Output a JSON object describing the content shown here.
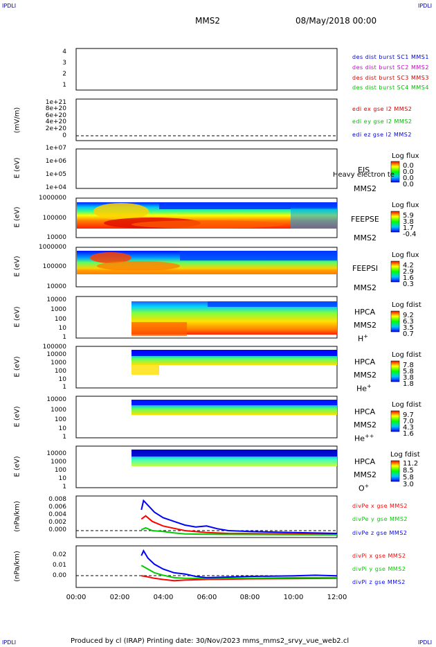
{
  "corners": {
    "top_left": "IPDLI",
    "top_right": "IPDLI",
    "bottom_left": "IPDLI",
    "bottom_right": "IPDLI"
  },
  "header": {
    "mission": "MMS2",
    "date": "08/May/2018 00:00"
  },
  "footer": "Produced by cl (IRAP)   Printing date: 30/Nov/2023   mms_mms2_srvy_vue_web2.cl",
  "colors": {
    "sc1": "#0000cc",
    "sc2": "#cc00cc",
    "sc3": "#cc0000",
    "sc4": "#00bb00",
    "x": "#ff0000",
    "y": "#00cc00",
    "z": "#0000ff"
  },
  "chart_data": [
    {
      "type": "line",
      "title": "Burst flags",
      "yticks": [
        "4",
        "3",
        "2",
        "1"
      ],
      "legend": [
        "des dist burst SC1 MMS1",
        "des dist burst SC2 MMS2",
        "des dist burst SC3 MMS3",
        "des dist burst SC4 MMS4"
      ],
      "xlim": [
        "00:00",
        "12:00"
      ]
    },
    {
      "type": "line",
      "ylabel": "(mV/m)",
      "yticks": [
        "1e+21",
        "8e+20",
        "6e+20",
        "4e+20",
        "2e+20",
        "0"
      ],
      "legend": [
        "edi ex gse l2 MMS2",
        "edi ey gse l2 MMS2",
        "edi ez gse l2 MMS2"
      ]
    },
    {
      "type": "heatmap",
      "instrument": "EIS",
      "ylabel": "E (eV)",
      "yticks": [
        "1e+07",
        "1e+06",
        "1e+05",
        "1e+04"
      ],
      "label": "EIS",
      "sublabel": "MMS2",
      "overlay": "Heavy electron te",
      "cbar_title": "Log flux",
      "cbar_ticks": [
        "0.0",
        "0.0",
        "0.0",
        "0.0"
      ]
    },
    {
      "type": "heatmap",
      "instrument": "FEEPSE",
      "ylabel": "E (eV)",
      "yticks": [
        "1000000",
        "100000",
        "10000"
      ],
      "label": "FEEPSE",
      "sublabel": "MMS2",
      "cbar_title": "Log flux",
      "cbar_ticks": [
        "5.9",
        "3.8",
        "1.7",
        "-0.4"
      ]
    },
    {
      "type": "heatmap",
      "instrument": "FEEPSI",
      "ylabel": "E (eV)",
      "yticks": [
        "1000000",
        "100000",
        "10000"
      ],
      "label": "FEEPSI",
      "sublabel": "MMS2",
      "cbar_title": "Log flux",
      "cbar_ticks": [
        "4.2",
        "2.9",
        "1.6",
        "0.3"
      ]
    },
    {
      "type": "heatmap",
      "instrument": "HPCA",
      "ylabel": "E (eV)",
      "yticks": [
        "10000",
        "1000",
        "100",
        "10",
        "1"
      ],
      "label": "HPCA",
      "sublabel": "MMS2",
      "species": "H",
      "charge": "+",
      "cbar_title": "Log fdist",
      "cbar_ticks": [
        "9.2",
        "6.3",
        "3.5",
        "0.7"
      ]
    },
    {
      "type": "heatmap",
      "instrument": "HPCA",
      "ylabel": "E (eV)",
      "yticks": [
        "100000",
        "10000",
        "1000",
        "100",
        "10",
        "1"
      ],
      "label": "HPCA",
      "sublabel": "MMS2",
      "species": "He",
      "charge": "+",
      "cbar_title": "Log fdist",
      "cbar_ticks": [
        "7.8",
        "5.8",
        "3.8",
        "1.8"
      ]
    },
    {
      "type": "heatmap",
      "instrument": "HPCA",
      "ylabel": "E (eV)",
      "yticks": [
        "10000",
        "1000",
        "100",
        "10",
        "1"
      ],
      "label": "HPCA",
      "sublabel": "MMS2",
      "species": "He",
      "charge": "++",
      "cbar_title": "Log fdist",
      "cbar_ticks": [
        "9.7",
        "7.0",
        "4.3",
        "1.6"
      ]
    },
    {
      "type": "heatmap",
      "instrument": "HPCA",
      "ylabel": "E (eV)",
      "yticks": [
        "10000",
        "1000",
        "100",
        "10",
        "1"
      ],
      "label": "HPCA",
      "sublabel": "MMS2",
      "species": "O",
      "charge": "+",
      "cbar_title": "Log fdist",
      "cbar_ticks": [
        "11.2",
        "8.5",
        "5.8",
        "3.0"
      ]
    },
    {
      "type": "line",
      "ylabel": "(nPa/km)",
      "yticks": [
        "0.008",
        "0.006",
        "0.004",
        "0.002",
        "0.000"
      ],
      "legend": [
        "divPe x gse MMS2",
        "divPe y gse MMS2",
        "divPe z gse MMS2"
      ],
      "series": [
        {
          "name": "divPe x gse MMS2",
          "x": [
            3.0,
            3.2,
            3.5,
            4.0,
            4.5,
            5.0,
            6.0,
            7.0,
            12.0
          ],
          "y": [
            0.0035,
            0.0042,
            0.003,
            0.002,
            0.0015,
            0.001,
            0.0006,
            0.0004,
            0.0002
          ]
        },
        {
          "name": "divPe y gse MMS2",
          "x": [
            3.0,
            3.2,
            3.5,
            4.0,
            4.5,
            5.0,
            6.0,
            12.0
          ],
          "y": [
            0.0012,
            0.0016,
            0.001,
            0.0008,
            0.0005,
            0.0003,
            0.0002,
            0.0001
          ]
        },
        {
          "name": "divPe z gse MMS2",
          "x": [
            3.0,
            3.1,
            3.3,
            3.6,
            4.0,
            4.5,
            5.0,
            5.5,
            6.0,
            6.5,
            7.0,
            8.0,
            10.0,
            12.0
          ],
          "y": [
            0.0055,
            0.0075,
            0.0065,
            0.005,
            0.0038,
            0.003,
            0.0022,
            0.0018,
            0.002,
            0.0014,
            0.001,
            0.0008,
            0.0006,
            0.0004
          ]
        }
      ]
    },
    {
      "type": "line",
      "ylabel": "(nPa/km)",
      "yticks": [
        "0.02",
        "0.01",
        "0.00"
      ],
      "legend": [
        "divPi x gse MMS2",
        "divPi y gse MMS2",
        "divPi z gse MMS2"
      ],
      "series": [
        {
          "name": "divPi x gse MMS2",
          "x": [
            3.0,
            3.2,
            3.6,
            4.0,
            4.5,
            5.0,
            6.0,
            8.0,
            10.0,
            12.0
          ],
          "y": [
            0.0035,
            0.003,
            0.0015,
            0.0005,
            -0.0005,
            0.0,
            0.0005,
            0.001,
            0.0012,
            0.0015
          ]
        },
        {
          "name": "divPi y gse MMS2",
          "x": [
            3.0,
            3.2,
            3.6,
            4.0,
            4.5,
            5.0,
            6.0,
            8.0,
            10.0,
            12.0
          ],
          "y": [
            0.012,
            0.01,
            0.006,
            0.004,
            0.002,
            0.0015,
            0.0012,
            0.0015,
            0.002,
            0.002
          ]
        },
        {
          "name": "divPi z gse MMS2",
          "x": [
            3.0,
            3.1,
            3.3,
            3.6,
            4.0,
            4.5,
            5.0,
            5.5,
            6.0,
            7.0,
            8.0,
            10.0,
            11.0,
            12.0
          ],
          "y": [
            0.02,
            0.024,
            0.018,
            0.013,
            0.009,
            0.006,
            0.005,
            0.003,
            0.002,
            0.0025,
            0.003,
            0.0035,
            0.004,
            0.0035
          ]
        }
      ]
    }
  ],
  "xaxis": {
    "ticks": [
      "00:00",
      "02:00",
      "04:00",
      "06:00",
      "08:00",
      "10:00",
      "12:00"
    ]
  }
}
